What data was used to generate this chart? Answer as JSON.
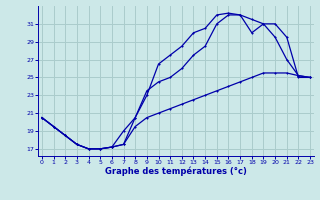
{
  "title": "Graphe des températures (°c)",
  "bg_color": "#cce8e8",
  "grid_color": "#aacccc",
  "line_color": "#0000aa",
  "xlim": [
    -0.3,
    23.3
  ],
  "ylim": [
    16.2,
    33.0
  ],
  "yticks": [
    17,
    19,
    21,
    23,
    25,
    27,
    29,
    31
  ],
  "xticks": [
    0,
    1,
    2,
    3,
    4,
    5,
    6,
    7,
    8,
    9,
    10,
    11,
    12,
    13,
    14,
    15,
    16,
    17,
    18,
    19,
    20,
    21,
    22,
    23
  ],
  "line1_x": [
    0,
    1,
    2,
    3,
    4,
    5,
    6,
    7,
    8,
    9,
    10,
    11,
    12,
    13,
    14,
    15,
    16,
    17,
    18,
    19,
    20,
    21,
    22,
    23
  ],
  "line1_y": [
    20.5,
    19.5,
    18.5,
    17.5,
    17.0,
    17.0,
    17.2,
    17.5,
    20.5,
    23.0,
    26.5,
    27.5,
    28.5,
    30.0,
    30.5,
    32.0,
    32.2,
    32.0,
    30.0,
    31.0,
    29.5,
    27.0,
    25.2,
    25.0
  ],
  "line2_x": [
    0,
    1,
    2,
    3,
    4,
    5,
    6,
    7,
    8,
    9,
    10,
    11,
    12,
    13,
    14,
    15,
    16,
    17,
    18,
    19,
    20,
    21,
    22,
    23
  ],
  "line2_y": [
    20.5,
    19.5,
    18.5,
    17.5,
    17.0,
    17.0,
    17.2,
    19.0,
    20.5,
    23.5,
    24.5,
    25.0,
    26.0,
    27.5,
    28.5,
    31.0,
    32.0,
    32.0,
    31.5,
    31.0,
    31.0,
    29.5,
    25.0,
    25.0
  ],
  "line3_x": [
    0,
    1,
    2,
    3,
    4,
    5,
    6,
    7,
    8,
    9,
    10,
    11,
    12,
    13,
    14,
    15,
    16,
    17,
    18,
    19,
    20,
    21,
    22,
    23
  ],
  "line3_y": [
    20.5,
    19.5,
    18.5,
    17.5,
    17.0,
    17.0,
    17.2,
    17.5,
    19.5,
    20.5,
    21.0,
    21.5,
    22.0,
    22.5,
    23.0,
    23.5,
    24.0,
    24.5,
    25.0,
    25.5,
    25.5,
    25.5,
    25.2,
    25.0
  ]
}
